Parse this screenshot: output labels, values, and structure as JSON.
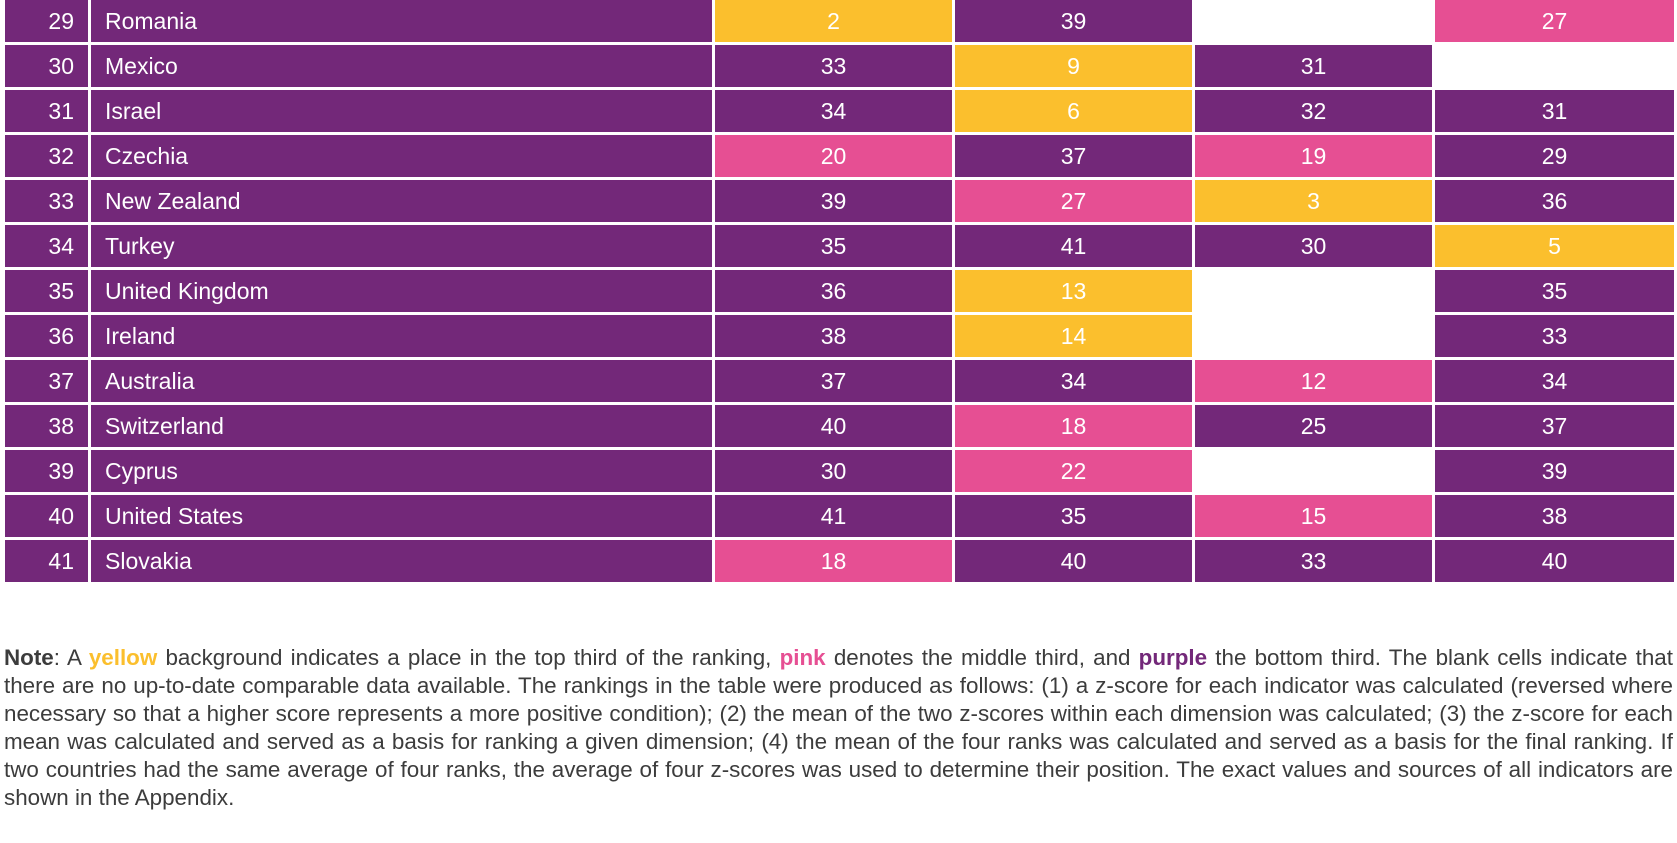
{
  "colors": {
    "yellow": "#fbbf2d",
    "pink": "#e64f93",
    "purple": "#732879",
    "blank": "#ffffff"
  },
  "table": {
    "rows": [
      {
        "rank": "29",
        "country": "Romania",
        "cells": [
          {
            "value": "2",
            "color": "yellow"
          },
          {
            "value": "39",
            "color": "purple"
          },
          {
            "value": "",
            "color": "blank"
          },
          {
            "value": "27",
            "color": "pink"
          }
        ]
      },
      {
        "rank": "30",
        "country": "Mexico",
        "cells": [
          {
            "value": "33",
            "color": "purple"
          },
          {
            "value": "9",
            "color": "yellow"
          },
          {
            "value": "31",
            "color": "purple"
          },
          {
            "value": "",
            "color": "blank"
          }
        ]
      },
      {
        "rank": "31",
        "country": "Israel",
        "cells": [
          {
            "value": "34",
            "color": "purple"
          },
          {
            "value": "6",
            "color": "yellow"
          },
          {
            "value": "32",
            "color": "purple"
          },
          {
            "value": "31",
            "color": "purple"
          }
        ]
      },
      {
        "rank": "32",
        "country": "Czechia",
        "cells": [
          {
            "value": "20",
            "color": "pink"
          },
          {
            "value": "37",
            "color": "purple"
          },
          {
            "value": "19",
            "color": "pink"
          },
          {
            "value": "29",
            "color": "purple"
          }
        ]
      },
      {
        "rank": "33",
        "country": "New Zealand",
        "cells": [
          {
            "value": "39",
            "color": "purple"
          },
          {
            "value": "27",
            "color": "pink"
          },
          {
            "value": "3",
            "color": "yellow"
          },
          {
            "value": "36",
            "color": "purple"
          }
        ]
      },
      {
        "rank": "34",
        "country": "Turkey",
        "cells": [
          {
            "value": "35",
            "color": "purple"
          },
          {
            "value": "41",
            "color": "purple"
          },
          {
            "value": "30",
            "color": "purple"
          },
          {
            "value": "5",
            "color": "yellow"
          }
        ]
      },
      {
        "rank": "35",
        "country": "United Kingdom",
        "cells": [
          {
            "value": "36",
            "color": "purple"
          },
          {
            "value": "13",
            "color": "yellow"
          },
          {
            "value": "",
            "color": "blank"
          },
          {
            "value": "35",
            "color": "purple"
          }
        ]
      },
      {
        "rank": "36",
        "country": "Ireland",
        "cells": [
          {
            "value": "38",
            "color": "purple"
          },
          {
            "value": "14",
            "color": "yellow"
          },
          {
            "value": "",
            "color": "blank"
          },
          {
            "value": "33",
            "color": "purple"
          }
        ]
      },
      {
        "rank": "37",
        "country": "Australia",
        "cells": [
          {
            "value": "37",
            "color": "purple"
          },
          {
            "value": "34",
            "color": "purple"
          },
          {
            "value": "12",
            "color": "pink"
          },
          {
            "value": "34",
            "color": "purple"
          }
        ]
      },
      {
        "rank": "38",
        "country": "Switzerland",
        "cells": [
          {
            "value": "40",
            "color": "purple"
          },
          {
            "value": "18",
            "color": "pink"
          },
          {
            "value": "25",
            "color": "purple"
          },
          {
            "value": "37",
            "color": "purple"
          }
        ]
      },
      {
        "rank": "39",
        "country": "Cyprus",
        "cells": [
          {
            "value": "30",
            "color": "purple"
          },
          {
            "value": "22",
            "color": "pink"
          },
          {
            "value": "",
            "color": "blank"
          },
          {
            "value": "39",
            "color": "purple"
          }
        ]
      },
      {
        "rank": "40",
        "country": "United States",
        "cells": [
          {
            "value": "41",
            "color": "purple"
          },
          {
            "value": "35",
            "color": "purple"
          },
          {
            "value": "15",
            "color": "pink"
          },
          {
            "value": "38",
            "color": "purple"
          }
        ]
      },
      {
        "rank": "41",
        "country": "Slovakia",
        "cells": [
          {
            "value": "18",
            "color": "pink"
          },
          {
            "value": "40",
            "color": "purple"
          },
          {
            "value": "33",
            "color": "purple"
          },
          {
            "value": "40",
            "color": "purple"
          }
        ]
      }
    ]
  },
  "note": {
    "label": "Note",
    "part1": ": A ",
    "yellow_word": "yellow",
    "part2": " background indicates a place in the top third of the ranking, ",
    "pink_word": "pink",
    "part3": " denotes the middle third, and ",
    "purple_word": "purple",
    "part4": " the bottom third. The blank cells indicate that there are no up-to-date comparable data available. The rankings in the table were produced as follows: (1) a z-score for each indicator was calculated (reversed where necessary so that a higher score represents a more positive condition); (2) the mean of the two z-scores within each dimension was calculated; (3) the z-score for each mean was calculated and served as a basis for ranking a given dimension; (4) the mean of the four ranks was calculated and served as a basis for the final ranking. If two countries had the same average of four ranks, the average of four z-scores was used to determine their position. The exact values and sources of all indicators are shown in the Appendix."
  }
}
